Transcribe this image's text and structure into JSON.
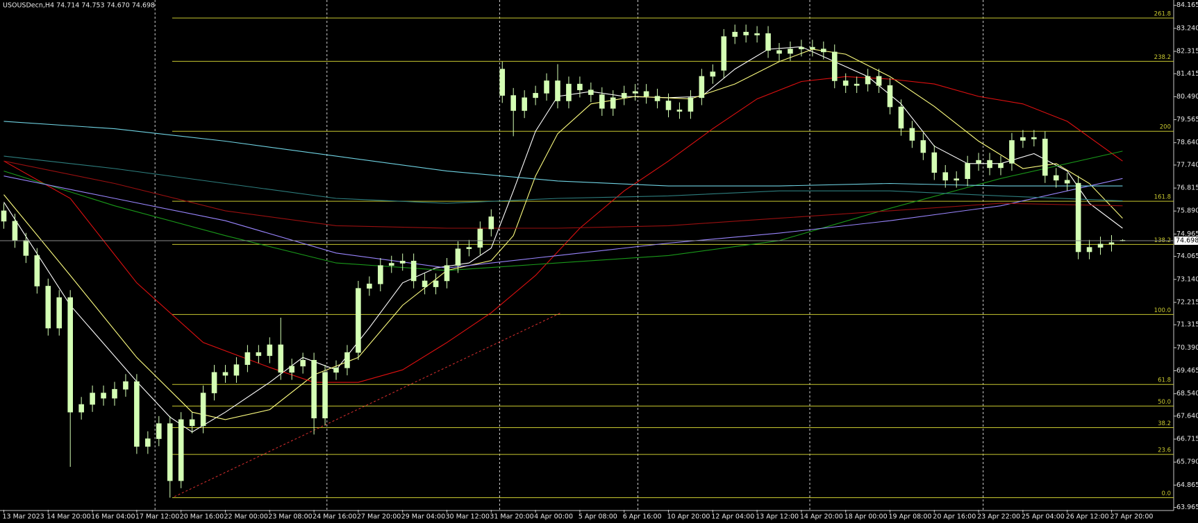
{
  "chart_data": {
    "type": "candlestick",
    "title": "USOUSDecn,H4  74.714 74.753 74.670 74.698",
    "categories": [
      "13 Mar 2023",
      null,
      null,
      null,
      "14 Mar 20:00",
      null,
      null,
      null,
      "16 Mar 04:00",
      null,
      null,
      null,
      "17 Mar 12:00",
      null,
      null,
      null,
      "20 Mar 16:00",
      null,
      null,
      null,
      "22 Mar 00:00",
      null,
      null,
      null,
      "23 Mar 08:00",
      null,
      null,
      null,
      "24 Mar 16:00",
      null,
      null,
      null,
      "27 Mar 20:00",
      null,
      null,
      null,
      "29 Mar 04:00",
      null,
      null,
      null,
      "30 Mar 12:00",
      null,
      null,
      null,
      "31 Mar 20:00",
      null,
      null,
      null,
      "4 Apr 00:00",
      null,
      null,
      null,
      "5 Apr 08:00",
      null,
      null,
      null,
      "6 Apr 16:00",
      null,
      null,
      null,
      "10 Apr 20:00",
      null,
      null,
      null,
      "12 Apr 04:00",
      null,
      null,
      null,
      "13 Apr 12:00",
      null,
      null,
      null,
      "14 Apr 20:00",
      null,
      null,
      null,
      "18 Apr 00:00",
      null,
      null,
      null,
      "19 Apr 08:00",
      null,
      null,
      null,
      "20 Apr 16:00",
      null,
      null,
      null,
      "23 Apr 22:00",
      null,
      null,
      null,
      "25 Apr 04:00",
      null,
      null,
      null,
      "26 Apr 12:00",
      null,
      null,
      null,
      "27 Apr 20:00",
      null
    ],
    "open": [
      75.9,
      75.48,
      74.71,
      74.1,
      72.87,
      71.18,
      72.41,
      67.8,
      68.11,
      68.57,
      68.36,
      68.72,
      69.03,
      66.42,
      66.73,
      67.34,
      65.04,
      67.5,
      67.25,
      68.57,
      69.4,
      69.28,
      69.71,
      70.2,
      70.07,
      70.51,
      69.4,
      69.65,
      69.89,
      67.56,
      69.4,
      69.58,
      70.2,
      72.78,
      72.96,
      73.7,
      73.79,
      73.88,
      73.08,
      72.84,
      73.08,
      73.7,
      74.37,
      74.43,
      75.17,
      81.6,
      80.54,
      79.93,
      80.45,
      80.63,
      81.13,
      80.32,
      81.0,
      80.76,
      80.57,
      80.02,
      80.45,
      80.63,
      80.7,
      80.51,
      80.32,
      79.96,
      79.9,
      80.45,
      81.31,
      81.55,
      82.91,
      83.09,
      82.97,
      83.03,
      82.35,
      82.23,
      82.41,
      82.48,
      82.41,
      82.29,
      81.13,
      80.94,
      81.0,
      81.31,
      80.94,
      80.08,
      79.22,
      78.73,
      78.24,
      77.44,
      77.13,
      77.19,
      77.81,
      77.93,
      77.63,
      77.81,
      78.73,
      78.85,
      78.79,
      77.32,
      77.13,
      77.01,
      74.25,
      74.43,
      74.56,
      74.714
    ],
    "high": [
      76.2,
      75.78,
      75.01,
      74.4,
      73.17,
      72.71,
      72.71,
      68.41,
      68.87,
      68.87,
      69.02,
      69.33,
      69.33,
      67.03,
      67.64,
      67.64,
      67.8,
      67.8,
      68.87,
      69.7,
      69.7,
      70.01,
      70.5,
      70.5,
      70.81,
      71.6,
      69.95,
      70.19,
      70.19,
      69.7,
      69.88,
      70.5,
      73.08,
      73.26,
      74.0,
      74.09,
      74.18,
      74.18,
      73.38,
      73.38,
      74.0,
      74.67,
      74.73,
      75.47,
      75.96,
      81.9,
      80.84,
      80.75,
      80.93,
      81.43,
      81.8,
      81.3,
      81.3,
      81.06,
      80.87,
      80.75,
      80.93,
      81.0,
      81.0,
      80.81,
      80.62,
      80.26,
      80.75,
      81.61,
      81.79,
      83.21,
      83.39,
      83.39,
      83.33,
      83.33,
      82.65,
      82.71,
      82.78,
      82.78,
      82.71,
      82.59,
      81.43,
      81.3,
      81.61,
      81.61,
      81.24,
      80.38,
      79.52,
      79.03,
      78.54,
      77.74,
      77.49,
      78.11,
      78.23,
      78.23,
      78.11,
      79.03,
      79.15,
      79.15,
      79.09,
      77.62,
      77.43,
      77.31,
      74.73,
      74.86,
      74.92,
      74.753
    ],
    "low": [
      75.18,
      74.41,
      73.8,
      72.57,
      70.88,
      70.88,
      65.6,
      67.5,
      67.81,
      68.06,
      68.06,
      68.42,
      66.12,
      66.12,
      66.43,
      64.36,
      64.74,
      66.95,
      66.95,
      68.27,
      68.98,
      68.98,
      69.41,
      69.77,
      69.77,
      69.1,
      69.1,
      69.35,
      66.9,
      67.26,
      69.1,
      69.28,
      69.9,
      72.48,
      72.66,
      73.4,
      73.49,
      72.78,
      72.54,
      72.54,
      72.78,
      73.4,
      74.07,
      74.13,
      74.87,
      80.24,
      78.9,
      79.63,
      80.15,
      80.33,
      80.02,
      80.02,
      80.46,
      80.27,
      79.72,
      79.72,
      80.15,
      80.33,
      80.21,
      80.02,
      79.66,
      79.6,
      79.6,
      80.15,
      81.01,
      81.25,
      82.61,
      82.67,
      82.67,
      82.05,
      81.93,
      81.93,
      82.11,
      82.11,
      81.99,
      80.83,
      80.64,
      80.64,
      80.7,
      80.64,
      79.78,
      78.92,
      78.43,
      77.94,
      77.14,
      76.83,
      76.83,
      76.89,
      77.51,
      77.33,
      77.33,
      77.51,
      78.43,
      78.49,
      77.02,
      76.83,
      76.71,
      73.95,
      73.95,
      74.13,
      74.26,
      74.67
    ],
    "close": [
      75.48,
      74.71,
      74.1,
      72.87,
      71.18,
      72.41,
      67.8,
      68.11,
      68.57,
      68.36,
      68.72,
      69.03,
      66.42,
      66.73,
      67.34,
      65.04,
      67.5,
      67.25,
      68.57,
      69.4,
      69.28,
      69.71,
      70.2,
      70.07,
      70.51,
      69.4,
      69.65,
      69.89,
      67.56,
      69.4,
      69.58,
      70.2,
      72.78,
      72.96,
      73.7,
      73.79,
      73.88,
      73.08,
      72.84,
      73.08,
      73.7,
      74.37,
      74.43,
      75.17,
      75.66,
      80.54,
      79.93,
      80.45,
      80.63,
      81.13,
      80.32,
      81.0,
      80.76,
      80.57,
      80.02,
      80.45,
      80.63,
      80.7,
      80.51,
      80.32,
      79.96,
      79.9,
      80.45,
      81.31,
      81.49,
      82.91,
      83.09,
      82.97,
      83.03,
      82.35,
      82.23,
      82.41,
      82.48,
      82.41,
      82.29,
      81.13,
      80.94,
      81.0,
      81.31,
      80.94,
      80.08,
      79.22,
      78.73,
      78.24,
      77.44,
      77.13,
      77.19,
      77.81,
      77.93,
      77.63,
      77.81,
      78.73,
      78.85,
      78.79,
      77.32,
      77.13,
      77.01,
      74.25,
      74.43,
      74.56,
      74.62,
      74.698
    ],
    "candle_color": "#d4ffb4",
    "ylim": [
      63.87,
      84.38
    ],
    "yticks": [
      84.165,
      {
        "value": 83.24,
        "label": "83.240"
      },
      82.315,
      81.415,
      {
        "value": 80.49,
        "label": "80.490"
      },
      79.565,
      {
        "value": 78.64,
        "label": "78.640"
      },
      {
        "value": 77.74,
        "label": "77.740"
      },
      76.815,
      {
        "value": 75.89,
        "label": "75.890"
      },
      74.965,
      74.065,
      {
        "value": 73.14,
        "label": "73.140"
      },
      72.215,
      71.315,
      {
        "value": 70.39,
        "label": "70.390"
      },
      69.465,
      {
        "value": 68.54,
        "label": "68.540"
      },
      {
        "value": 67.64,
        "label": "67.640"
      },
      66.715,
      {
        "value": 65.79,
        "label": "65.790"
      },
      64.865,
      63.965
    ],
    "xgrid": [
      13.65,
      29.17,
      44.76,
      57.24,
      72.76,
      88.41
    ],
    "series": [
      {
        "color": "#ffffff",
        "x": [
          0,
          6,
          12,
          15,
          17,
          20,
          24,
          27,
          30,
          33,
          36,
          39,
          42,
          44,
          46,
          48,
          50,
          53,
          56,
          60,
          63,
          66,
          69,
          72,
          75,
          78,
          81,
          84,
          87,
          90,
          93,
          96,
          98,
          101
        ],
        "values": [
          76.25,
          72.1,
          69.03,
          67.6,
          67.0,
          67.8,
          69.0,
          70.0,
          69.5,
          71.2,
          73.0,
          73.6,
          73.8,
          74.4,
          76.7,
          79.1,
          80.5,
          80.7,
          80.5,
          80.45,
          80.5,
          81.6,
          82.4,
          82.5,
          81.9,
          81.3,
          80.2,
          78.5,
          77.8,
          77.8,
          78.2,
          77.5,
          76.2,
          75.2
        ]
      },
      {
        "color": "#ffff80",
        "x": [
          0,
          6,
          12,
          17,
          20,
          24,
          28,
          32,
          36,
          40,
          44,
          46,
          48,
          50,
          53,
          57,
          62,
          66,
          70,
          73,
          76,
          80,
          84,
          88,
          92,
          95,
          98,
          101
        ],
        "values": [
          76.55,
          73.3,
          70.0,
          67.8,
          67.5,
          67.9,
          69.3,
          70.0,
          72.1,
          73.5,
          73.9,
          74.9,
          77.3,
          79.0,
          80.2,
          80.5,
          80.4,
          81.0,
          81.9,
          82.4,
          82.2,
          81.3,
          80.1,
          78.7,
          77.6,
          77.8,
          77.0,
          75.6
        ]
      },
      {
        "color": "#e01010",
        "x": [
          0,
          6,
          12,
          18,
          24,
          28,
          32,
          36,
          40,
          44,
          48,
          52,
          56,
          60,
          64,
          68,
          72,
          76,
          80,
          84,
          88,
          92,
          96,
          101
        ],
        "values": [
          77.9,
          76.4,
          73.0,
          70.6,
          69.6,
          69.0,
          69.0,
          69.5,
          70.6,
          71.8,
          73.3,
          75.2,
          76.7,
          77.9,
          79.2,
          80.4,
          81.1,
          81.3,
          81.2,
          81.0,
          80.5,
          80.2,
          79.5,
          77.9
        ]
      },
      {
        "color": "#1a9a1a",
        "x": [
          0,
          10,
          20,
          30,
          40,
          50,
          60,
          70,
          80,
          90,
          101
        ],
        "values": [
          77.5,
          76.1,
          74.9,
          73.8,
          73.5,
          73.8,
          74.1,
          74.7,
          76.0,
          77.2,
          78.3
        ]
      },
      {
        "color": "#9a86ff",
        "x": [
          0,
          10,
          20,
          30,
          40,
          50,
          60,
          70,
          80,
          90,
          101
        ],
        "values": [
          77.3,
          76.4,
          75.5,
          74.2,
          73.6,
          74.1,
          74.6,
          75.0,
          75.5,
          76.1,
          77.2
        ]
      },
      {
        "color": "#9a1010",
        "x": [
          0,
          10,
          20,
          30,
          40,
          50,
          60,
          70,
          80,
          90,
          101
        ],
        "values": [
          77.9,
          77.0,
          75.9,
          75.3,
          75.2,
          75.2,
          75.3,
          75.6,
          75.9,
          76.2,
          76.1
        ]
      },
      {
        "color": "#70d4e4",
        "x": [
          0,
          10,
          20,
          30,
          40,
          50,
          60,
          70,
          80,
          90,
          101
        ],
        "values": [
          79.5,
          79.2,
          78.7,
          78.1,
          77.5,
          77.1,
          76.9,
          76.9,
          77.0,
          76.9,
          76.9
        ]
      },
      {
        "color": "#2e7f7f",
        "x": [
          0,
          10,
          20,
          30,
          40,
          50,
          60,
          70,
          80,
          90,
          101
        ],
        "values": [
          78.1,
          77.6,
          77.0,
          76.4,
          76.2,
          76.4,
          76.5,
          76.7,
          76.7,
          76.5,
          76.3
        ]
      }
    ],
    "trendline": {
      "color": "#e03030",
      "x": [
        15.4,
        50.3
      ],
      "values": [
        64.4,
        71.8
      ]
    },
    "fibo": {
      "color": "#c8c830",
      "low": 64.36,
      "high": 71.73,
      "from_x": 15.2,
      "levels": [
        {
          "value": 0,
          "label": "0.0"
        },
        23.6,
        38.2,
        {
          "value": 50,
          "label": "50.0"
        },
        61.8,
        {
          "value": 100,
          "label": "100.0"
        },
        138.2,
        161.8,
        200,
        238.2,
        261.8
      ]
    }
  }
}
